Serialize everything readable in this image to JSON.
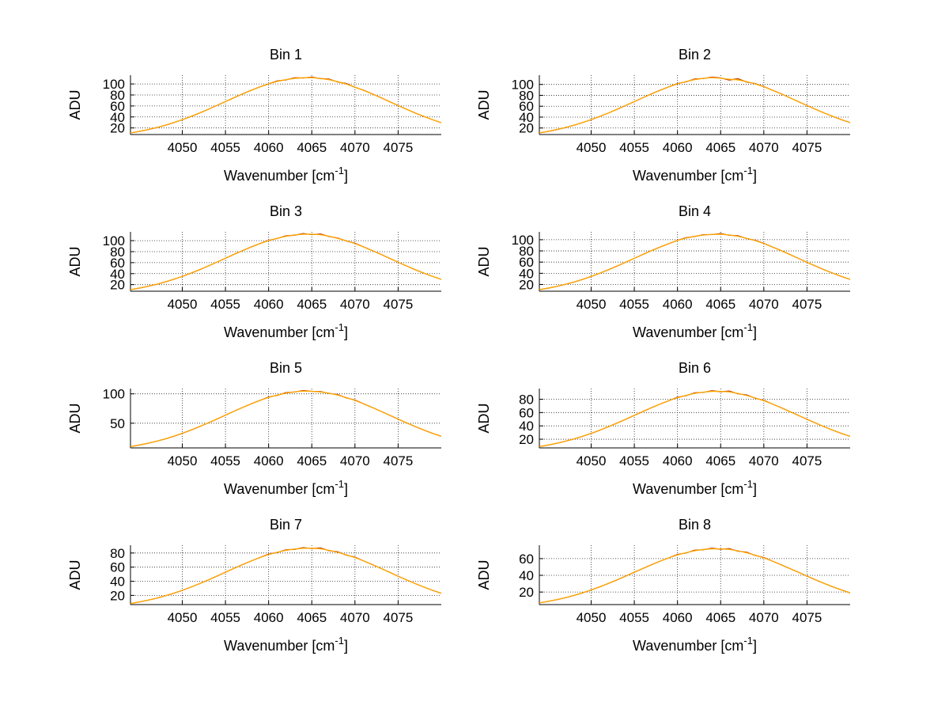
{
  "figure": {
    "background": "#ffffff"
  },
  "chart_data": {
    "type": "line",
    "layout": {
      "rows": 4,
      "cols": 2,
      "grid": "dotted",
      "legend": "none"
    },
    "ylabel": "ADU",
    "xlabel": {
      "text": "Wavenumber [cm",
      "sup": "-1",
      "end": "]"
    },
    "xlim": [
      4044,
      4080
    ],
    "x_ticks": [
      4050,
      4055,
      4060,
      4065,
      4070,
      4075
    ],
    "colors": {
      "line": "#ffaa00",
      "underlay": "#c43c00",
      "axis": "#000000",
      "grid": "#000000"
    },
    "x": [
      4044,
      4045,
      4046,
      4047,
      4048,
      4049,
      4050,
      4051,
      4052,
      4053,
      4054,
      4055,
      4056,
      4057,
      4058,
      4059,
      4060,
      4061,
      4062,
      4063,
      4064,
      4065,
      4066,
      4067,
      4068,
      4069,
      4070,
      4071,
      4072,
      4073,
      4074,
      4075,
      4076,
      4077,
      4078,
      4079,
      4080
    ],
    "subplots": [
      {
        "title": "Bin 1",
        "ylim": [
          8,
          116
        ],
        "y_ticks": [
          20,
          40,
          60,
          80,
          100
        ],
        "values": [
          10.9,
          13.6,
          16.8,
          20.5,
          24.8,
          29.6,
          34.9,
          40.8,
          47.1,
          53.8,
          60.8,
          67.9,
          75.1,
          82.0,
          88.6,
          94.7,
          100.1,
          105.5,
          107.4,
          111.2,
          110.9,
          112.6,
          109.8,
          108.9,
          103.6,
          100.8,
          94.0,
          88.6,
          82.0,
          75.1,
          67.9,
          60.8,
          53.8,
          47.1,
          40.8,
          34.9,
          29.6
        ]
      },
      {
        "title": "Bin 2",
        "ylim": [
          8,
          117
        ],
        "y_ticks": [
          20,
          40,
          60,
          80,
          100
        ],
        "values": [
          11.0,
          13.7,
          17.0,
          20.7,
          25.0,
          29.9,
          35.2,
          41.2,
          47.5,
          54.3,
          61.3,
          68.5,
          75.7,
          82.8,
          89.4,
          95.6,
          101.8,
          104.9,
          110.0,
          110.8,
          113.5,
          111.9,
          108.0,
          110.5,
          104.5,
          101.5,
          96.2,
          89.4,
          82.8,
          75.7,
          68.5,
          61.3,
          54.3,
          47.5,
          41.2,
          35.2,
          29.9
        ]
      },
      {
        "title": "Bin 3",
        "ylim": [
          8,
          116
        ],
        "y_ticks": [
          20,
          40,
          60,
          80,
          100
        ],
        "values": [
          10.9,
          13.6,
          16.8,
          20.5,
          24.8,
          29.6,
          34.9,
          40.8,
          47.1,
          53.8,
          60.8,
          67.9,
          75.1,
          82.0,
          88.6,
          94.7,
          100.5,
          104.0,
          108.8,
          110.0,
          112.9,
          111.0,
          112.2,
          107.5,
          104.9,
          99.5,
          95.3,
          88.6,
          82.0,
          75.1,
          67.9,
          60.8,
          53.8,
          47.1,
          40.8,
          34.9,
          29.6
        ]
      },
      {
        "title": "Bin 4",
        "ylim": [
          8,
          114
        ],
        "y_ticks": [
          20,
          40,
          60,
          80,
          100
        ],
        "values": [
          10.7,
          13.4,
          16.5,
          20.2,
          24.3,
          29.1,
          34.3,
          40.1,
          46.3,
          52.9,
          59.7,
          66.7,
          73.7,
          80.6,
          87.0,
          93.0,
          98.9,
          103.5,
          105.8,
          108.9,
          109.2,
          110.9,
          108.0,
          107.1,
          102.2,
          98.9,
          93.5,
          87.0,
          80.6,
          73.7,
          66.7,
          59.7,
          52.9,
          46.3,
          40.1,
          34.3,
          29.1
        ]
      },
      {
        "title": "Bin 5",
        "ylim": [
          8,
          109
        ],
        "y_ticks": [
          50,
          100
        ],
        "values": [
          10.2,
          12.8,
          15.8,
          19.2,
          23.2,
          27.7,
          32.7,
          38.3,
          44.2,
          50.5,
          57.0,
          63.7,
          70.4,
          76.9,
          83.1,
          88.8,
          94.5,
          97.4,
          102.0,
          103.1,
          105.6,
          104.2,
          103.9,
          100.8,
          98.7,
          93.2,
          89.4,
          83.1,
          76.9,
          70.4,
          63.7,
          57.0,
          50.5,
          44.2,
          38.3,
          32.7,
          27.7
        ]
      },
      {
        "title": "Bin 6",
        "ylim": [
          7,
          96
        ],
        "y_ticks": [
          20,
          40,
          60,
          80
        ],
        "values": [
          9.0,
          11.2,
          13.8,
          16.9,
          20.4,
          24.3,
          28.7,
          33.5,
          38.7,
          44.2,
          49.9,
          55.8,
          61.6,
          67.4,
          72.8,
          77.8,
          82.9,
          85.3,
          89.6,
          90.2,
          92.8,
          91.2,
          92.3,
          88.1,
          86.5,
          81.5,
          78.4,
          72.8,
          67.4,
          61.6,
          55.8,
          49.9,
          44.2,
          38.7,
          33.5,
          28.7,
          24.3
        ]
      },
      {
        "title": "Bin 7",
        "ylim": [
          7,
          91
        ],
        "y_ticks": [
          20,
          40,
          60,
          80
        ],
        "values": [
          8.5,
          10.6,
          13.1,
          15.9,
          19.3,
          23.0,
          27.1,
          31.7,
          36.6,
          41.8,
          47.2,
          52.8,
          58.3,
          63.7,
          68.8,
          73.6,
          78.4,
          80.7,
          84.6,
          85.2,
          87.6,
          86.3,
          87.2,
          83.3,
          81.7,
          77.0,
          74.2,
          68.8,
          63.7,
          58.3,
          52.8,
          47.2,
          41.8,
          36.6,
          31.7,
          27.1,
          23.0
        ]
      },
      {
        "title": "Bin 8",
        "ylim": [
          5,
          76
        ],
        "y_ticks": [
          20,
          40,
          60
        ],
        "values": [
          7.0,
          8.8,
          10.8,
          13.2,
          15.9,
          19.0,
          22.5,
          26.2,
          30.3,
          34.6,
          39.1,
          43.7,
          48.2,
          52.7,
          57.0,
          60.9,
          65.0,
          66.8,
          70.1,
          70.6,
          72.5,
          71.2,
          72.0,
          68.9,
          67.7,
          63.8,
          61.3,
          57.0,
          52.7,
          48.2,
          43.7,
          39.1,
          34.6,
          30.3,
          26.2,
          22.5,
          19.0
        ]
      }
    ]
  }
}
